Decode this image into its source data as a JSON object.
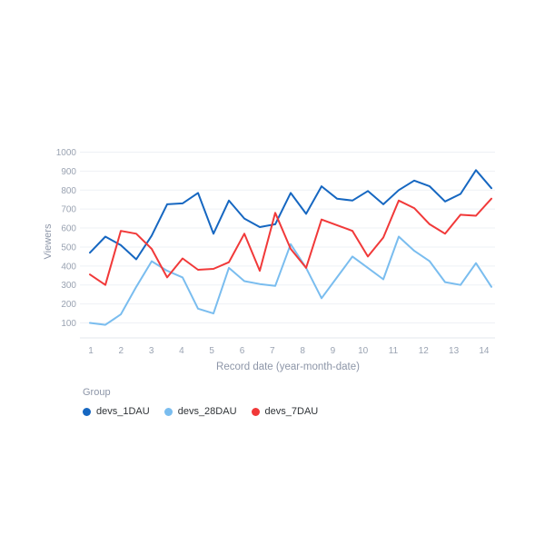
{
  "chart_data": {
    "type": "line",
    "title": "",
    "xlabel": "Record date (year-month-date)",
    "ylabel": "Viewers",
    "legend_title": "Group",
    "legend_position": "bottom-left",
    "grid": true,
    "ylim": [
      100,
      1000
    ],
    "y_ticks": [
      100,
      200,
      300,
      400,
      500,
      600,
      700,
      800,
      900,
      1000
    ],
    "x_tick_labels": [
      "1",
      "2",
      "3",
      "4",
      "5",
      "6",
      "7",
      "8",
      "9",
      "10",
      "11",
      "12",
      "13",
      "14"
    ],
    "x": [
      1,
      1.5,
      2,
      2.5,
      3,
      3.5,
      4,
      4.5,
      5,
      5.5,
      6,
      6.5,
      7,
      7.5,
      8,
      8.5,
      9,
      9.5,
      10,
      10.5,
      11,
      11.5,
      12,
      12.5,
      13,
      13.5,
      14
    ],
    "series": [
      {
        "name": "devs_1DAU",
        "color": "#1667c1",
        "values": [
          470,
          555,
          510,
          435,
          560,
          725,
          730,
          785,
          570,
          745,
          650,
          605,
          620,
          785,
          675,
          820,
          755,
          745,
          795,
          725,
          800,
          850,
          820,
          740,
          780,
          905,
          810
        ]
      },
      {
        "name": "devs_28DAU",
        "color": "#7abdef",
        "values": [
          100,
          90,
          145,
          290,
          425,
          375,
          340,
          175,
          150,
          390,
          320,
          305,
          295,
          515,
          390,
          230,
          340,
          450,
          390,
          330,
          555,
          480,
          425,
          315,
          300,
          415,
          290
        ]
      },
      {
        "name": "devs_7DAU",
        "color": "#f13939",
        "values": [
          355,
          300,
          585,
          570,
          490,
          340,
          440,
          380,
          385,
          420,
          570,
          375,
          680,
          490,
          390,
          645,
          615,
          585,
          450,
          550,
          745,
          705,
          620,
          570,
          670,
          665,
          755
        ]
      }
    ]
  }
}
